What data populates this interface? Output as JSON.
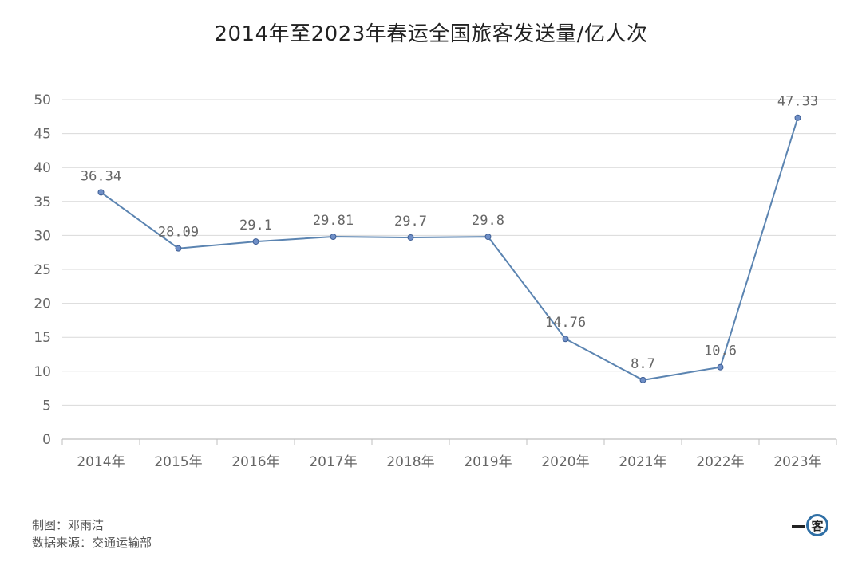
{
  "chart_data": {
    "type": "line",
    "title": "2014年至2023年春运全国旅客发送量/亿人次",
    "categories": [
      "2014年",
      "2015年",
      "2016年",
      "2017年",
      "2018年",
      "2019年",
      "2020年",
      "2021年",
      "2022年",
      "2023年"
    ],
    "series": [
      {
        "values": [
          36.34,
          28.09,
          29.1,
          29.81,
          29.7,
          29.8,
          14.76,
          8.7,
          10.6,
          47.33
        ],
        "labels": [
          "36.34",
          "28.09",
          "29.1",
          "29.81",
          "29.7",
          "29.8",
          "14.76",
          "8.7",
          "10.6",
          "47.33"
        ]
      }
    ],
    "yticks": [
      "0",
      "5",
      "10",
      "15",
      "20",
      "25",
      "30",
      "35",
      "40",
      "45",
      "50"
    ],
    "ylim": [
      0,
      50
    ],
    "grid": true,
    "colors": {
      "line": "#5b84b1",
      "marker": "#6f8fc7",
      "marker_stroke": "#3f5f95",
      "grid": "#d9d9d9",
      "tick_text": "#666666",
      "label_text": "#666666"
    }
  },
  "footer": {
    "credit": "制图：邓雨洁",
    "source": "数据来源：交通运输部"
  },
  "logo": {
    "glyph": "客"
  }
}
